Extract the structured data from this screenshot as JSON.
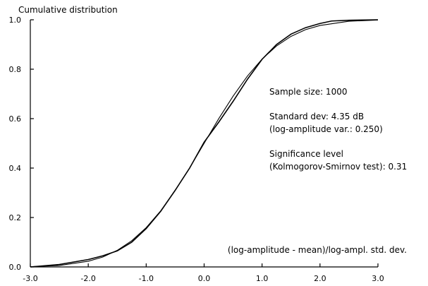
{
  "chart_data": {
    "type": "line",
    "title": "Cumulative distribution",
    "xlabel": "(log-amplitude - mean)/log-ampl. std. dev.",
    "ylabel": "",
    "xlim": [
      -3.0,
      3.0
    ],
    "ylim": [
      0.0,
      1.0
    ],
    "x_ticks": [
      "-3.0",
      "-2.0",
      "-1.0",
      "0.0",
      "1.0",
      "2.0",
      "3.0"
    ],
    "y_ticks": [
      "0.0",
      "0.2",
      "0.4",
      "0.6",
      "0.8",
      "1.0"
    ],
    "annotations": [
      "Sample size: 1000",
      "Standard dev: 4.35 dB",
      "(log-amplitude var.: 0.250)",
      "Significance level",
      "(Kolmogorov-Smirnov test): 0.31"
    ],
    "grid": false,
    "legend": "none",
    "series": [
      {
        "x": [
          -3.0,
          -2.5,
          -2.0,
          -1.75,
          -1.5,
          -1.25,
          -1.0,
          -0.75,
          -0.5,
          -0.25,
          0.0,
          0.25,
          0.5,
          0.75,
          1.0,
          1.25,
          1.5,
          1.75,
          2.0,
          2.5,
          3.0
        ],
        "values": [
          0.001,
          0.006,
          0.023,
          0.04,
          0.067,
          0.106,
          0.159,
          0.227,
          0.309,
          0.401,
          0.5,
          0.599,
          0.691,
          0.773,
          0.841,
          0.894,
          0.933,
          0.96,
          0.977,
          0.994,
          0.999
        ]
      },
      {
        "x": [
          -3.0,
          -2.5,
          -2.0,
          -1.75,
          -1.5,
          -1.25,
          -1.0,
          -0.75,
          -0.5,
          -0.25,
          0.0,
          0.25,
          0.5,
          0.75,
          1.0,
          1.25,
          1.5,
          1.75,
          2.0,
          2.2,
          2.5,
          3.0
        ],
        "values": [
          0.0,
          0.01,
          0.03,
          0.045,
          0.065,
          0.1,
          0.155,
          0.225,
          0.31,
          0.4,
          0.505,
          0.585,
          0.67,
          0.76,
          0.84,
          0.9,
          0.942,
          0.968,
          0.985,
          0.995,
          0.998,
          1.0
        ]
      }
    ]
  }
}
